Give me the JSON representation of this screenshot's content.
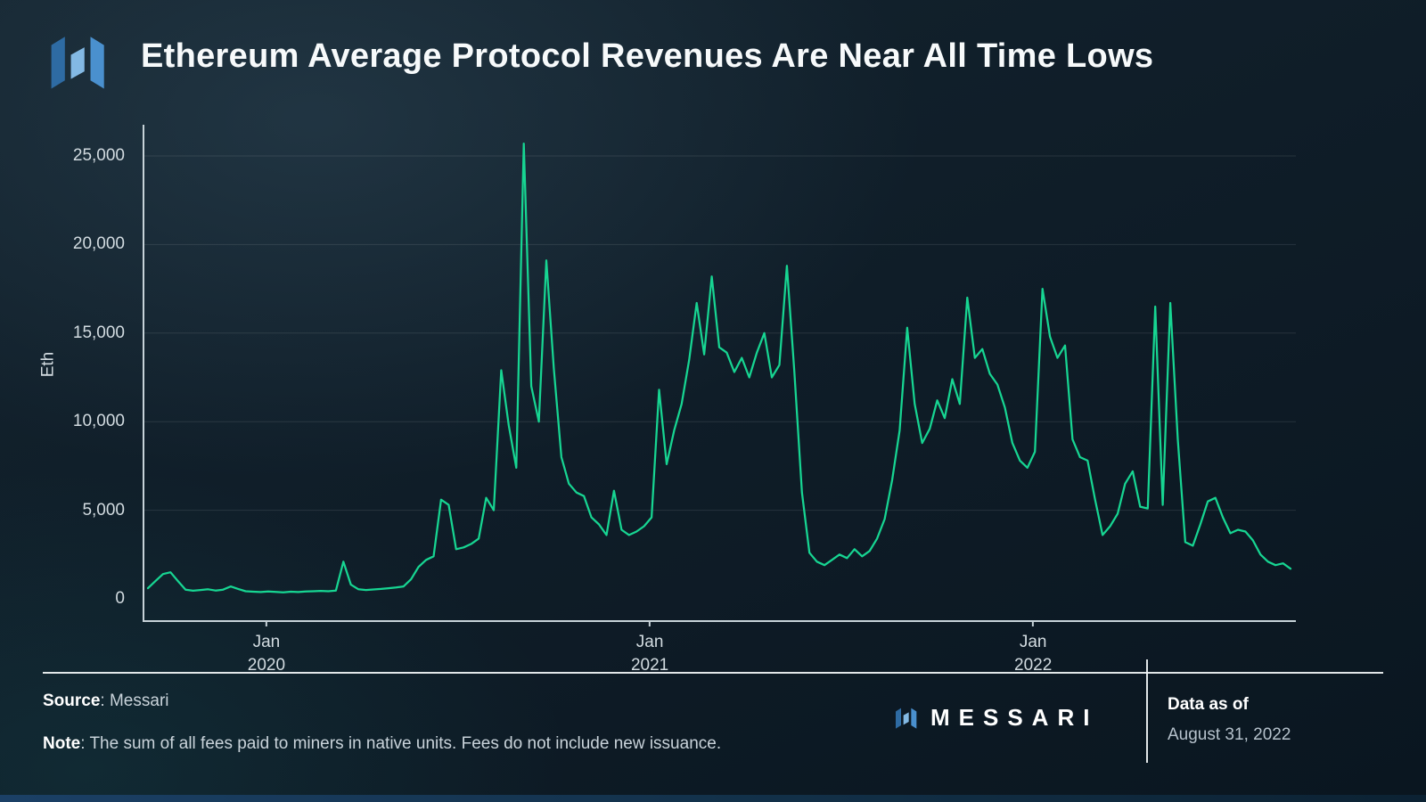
{
  "header": {
    "title": "Ethereum Average Protocol Revenues Are Near All Time Lows"
  },
  "brand": {
    "wordmark": "MESSARI",
    "logo_colors": [
      "#2e6ba3",
      "#83b9e4",
      "#4a90ce"
    ]
  },
  "chart_data": {
    "type": "line",
    "title": "Ethereum Average Protocol Revenues Are Near All Time Lows",
    "ylabel": "Eth",
    "xlabel": "",
    "line_color": "#17d592",
    "ylim": [
      0,
      25000
    ],
    "grid": "horizontal",
    "legend": "none",
    "x_unit": "weekly samples, Sep 2019 - Aug 31 2022",
    "y_ticks": [
      {
        "value": 0,
        "label": "0"
      },
      {
        "value": 5000,
        "label": "5,000"
      },
      {
        "value": 10000,
        "label": "10,000"
      },
      {
        "value": 15000,
        "label": "15,000"
      },
      {
        "value": 20000,
        "label": "20,000"
      },
      {
        "value": 25000,
        "label": "25,000"
      }
    ],
    "x_ticks": [
      {
        "index": 16,
        "month": "Jan",
        "year": "2020"
      },
      {
        "index": 67,
        "month": "Jan",
        "year": "2021"
      },
      {
        "index": 118,
        "month": "Jan",
        "year": "2022"
      }
    ],
    "values": [
      600,
      1000,
      1400,
      1500,
      1000,
      520,
      460,
      500,
      540,
      470,
      520,
      700,
      560,
      430,
      400,
      380,
      420,
      390,
      360,
      400,
      380,
      410,
      430,
      450,
      430,
      470,
      2100,
      800,
      540,
      500,
      530,
      560,
      600,
      640,
      700,
      1100,
      1800,
      2200,
      2400,
      5600,
      5300,
      2800,
      2900,
      3100,
      3400,
      5700,
      5000,
      12900,
      9800,
      7400,
      25700,
      12000,
      10000,
      19100,
      13000,
      8000,
      6500,
      6000,
      5800,
      4600,
      4200,
      3600,
      6100,
      3900,
      3600,
      3800,
      4100,
      4600,
      11800,
      7600,
      9500,
      11000,
      13500,
      16700,
      13800,
      18200,
      14200,
      13900,
      12800,
      13600,
      12500,
      13900,
      15000,
      12500,
      13200,
      18800,
      12800,
      6000,
      2600,
      2100,
      1900,
      2200,
      2500,
      2300,
      2800,
      2400,
      2700,
      3400,
      4500,
      6700,
      9500,
      15300,
      11000,
      8800,
      9600,
      11200,
      10200,
      12400,
      11000,
      17000,
      13600,
      14100,
      12700,
      12100,
      10800,
      8800,
      7800,
      7400,
      8300,
      17500,
      14800,
      13600,
      14300,
      9000,
      8000,
      7800,
      5600,
      3600,
      4100,
      4800,
      6500,
      7200,
      5200,
      5100,
      16500,
      5300,
      16700,
      9000,
      3200,
      3000,
      4200,
      5500,
      5700,
      4600,
      3700,
      3900,
      3800,
      3300,
      2500,
      2100,
      1900,
      2000,
      1700
    ]
  },
  "footer": {
    "source_label": "Source",
    "source_text": ": Messari",
    "note_label": "Note",
    "note_text": ": The sum of all fees paid to miners in native units. Fees do not include new issuance.",
    "data_as_of_label": "Data as of",
    "data_as_of_date": "August 31, 2022"
  }
}
